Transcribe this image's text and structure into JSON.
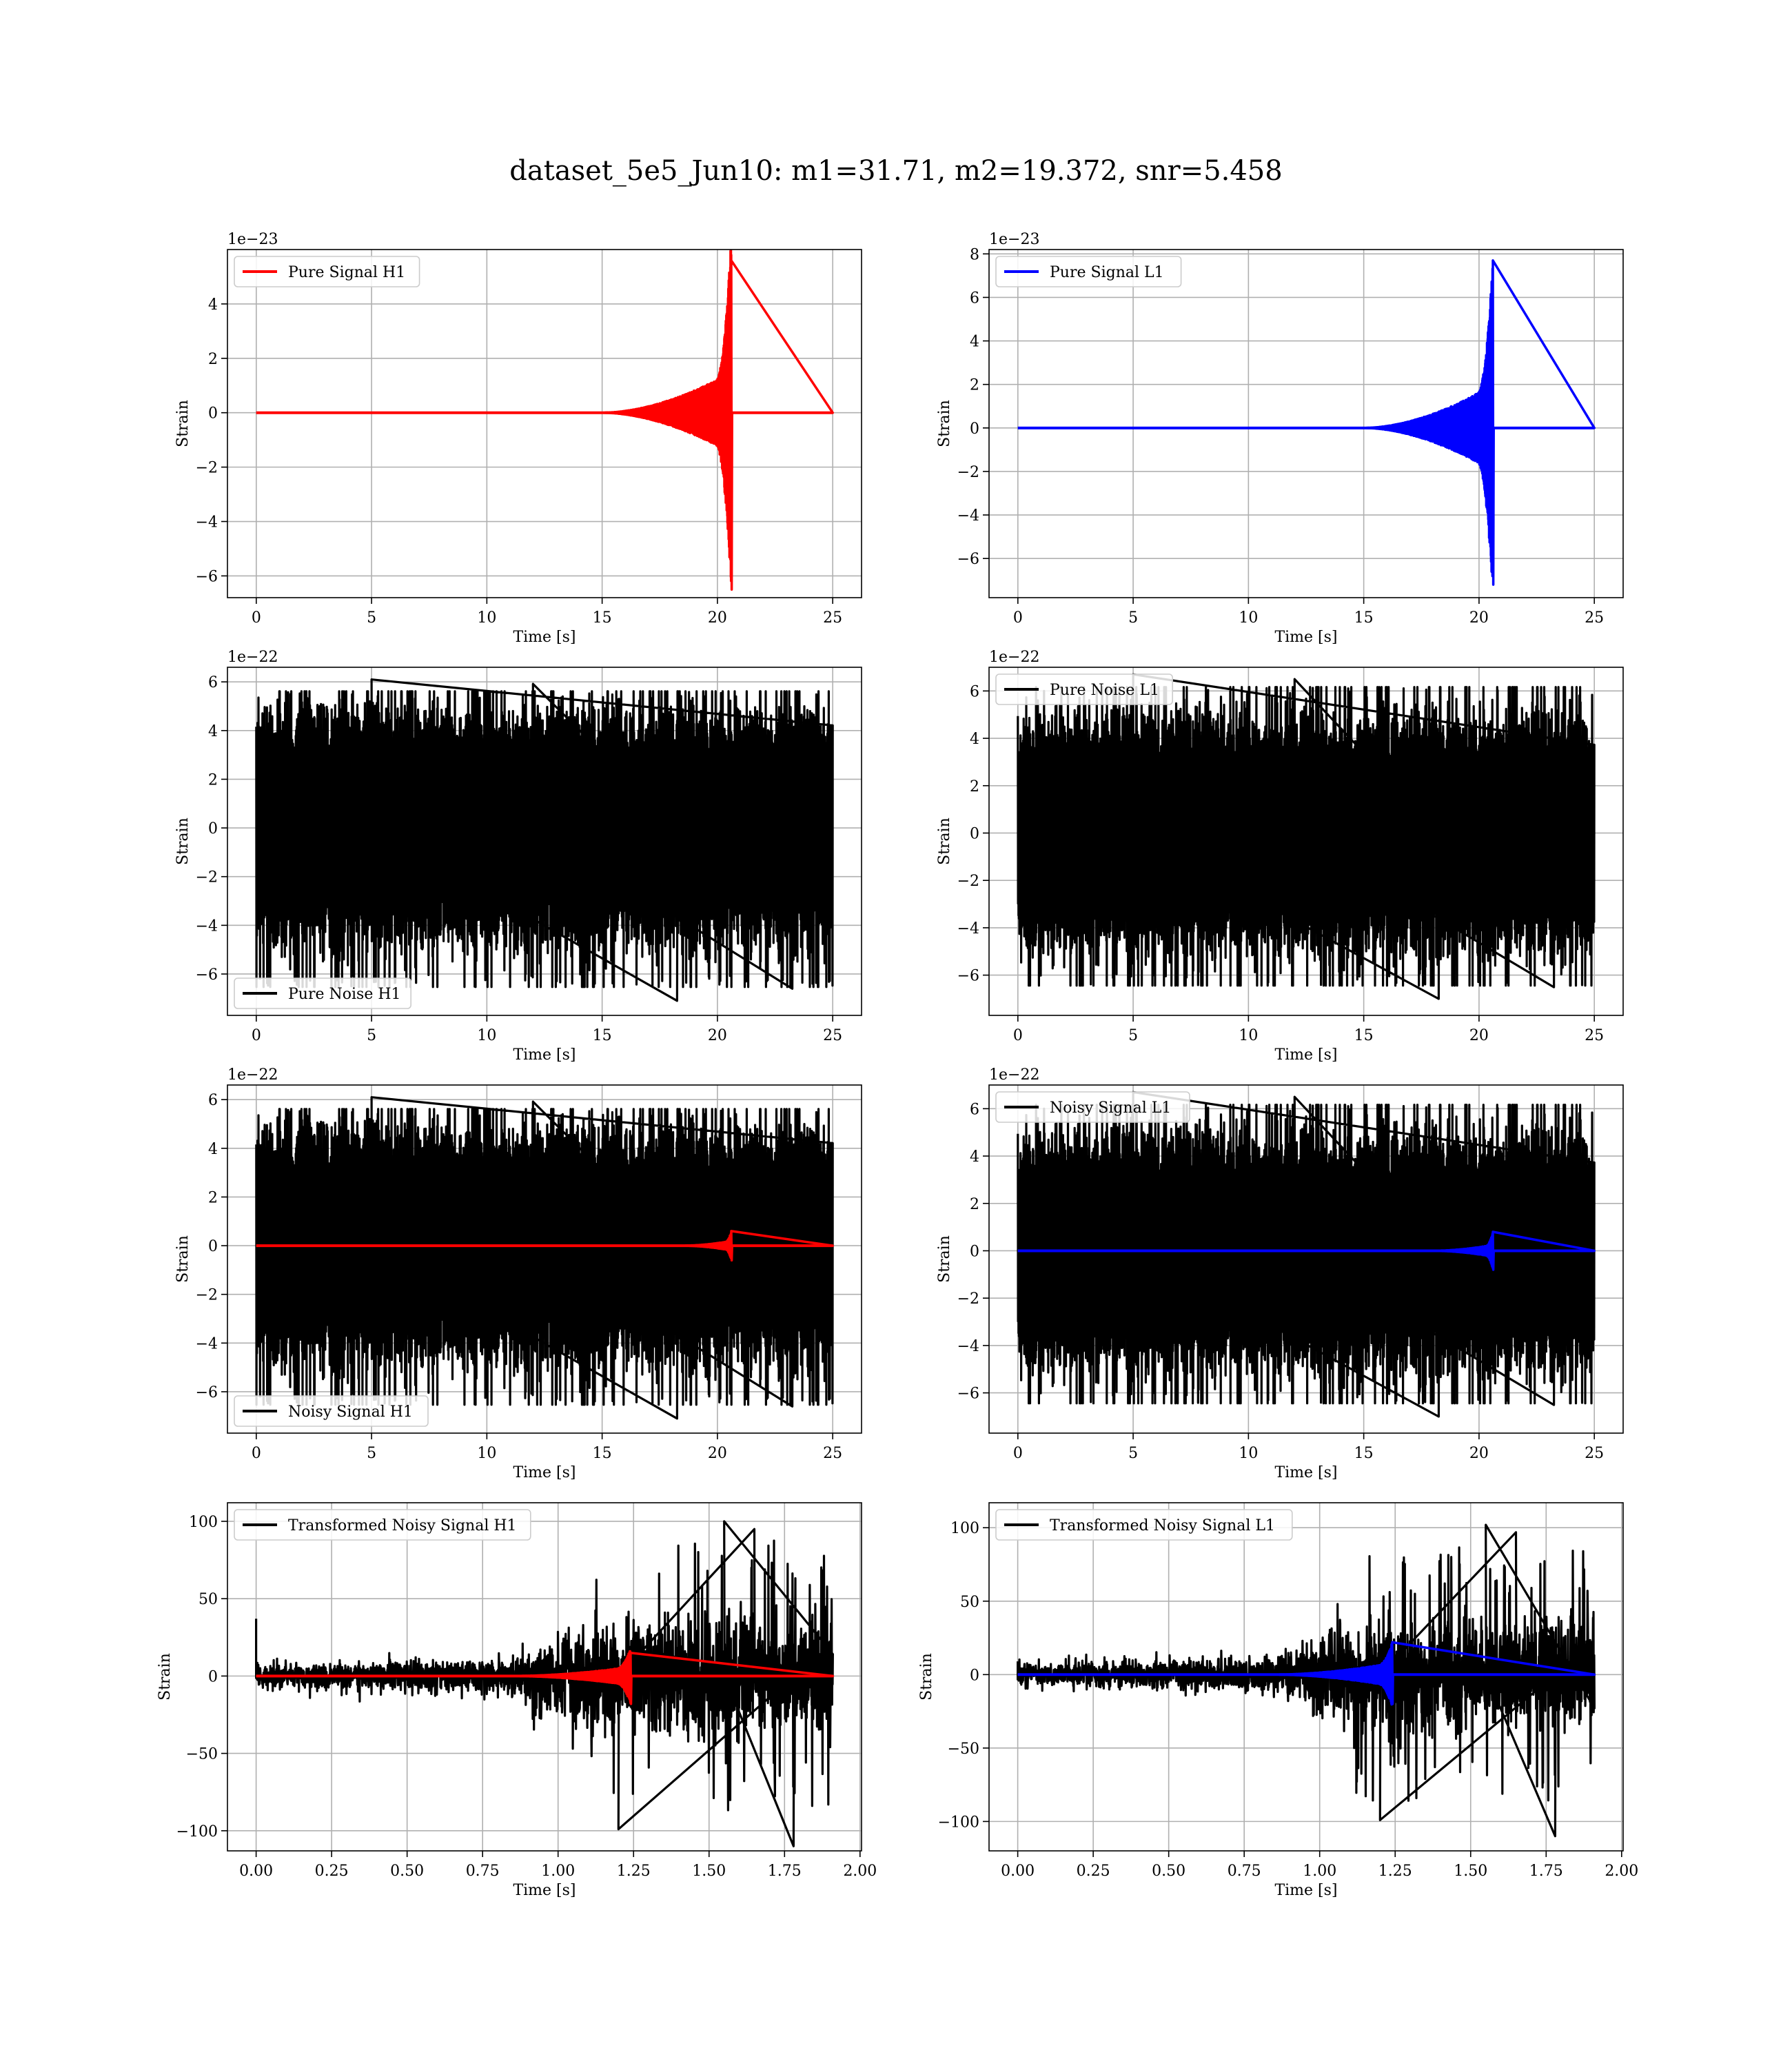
{
  "suptitle": "dataset_5e5_Jun10: m1=31.71, m2=19.372, snr=5.458",
  "chart_data": [
    {
      "type": "line",
      "panel": "top-left",
      "title": "",
      "xlabel": "Time [s]",
      "ylabel": "Strain",
      "offset_text": "1e−23",
      "xlim": [
        -1.25,
        26.25
      ],
      "ylim": [
        -6.8,
        6.0
      ],
      "xticks": [
        0,
        5,
        10,
        15,
        20,
        25
      ],
      "xtick_labels": [
        "0",
        "5",
        "10",
        "15",
        "20",
        "25"
      ],
      "yticks": [
        -6,
        -4,
        -2,
        0,
        2,
        4
      ],
      "ytick_labels": [
        "−6",
        "−4",
        "−2",
        "0",
        "2",
        "4"
      ],
      "grid": true,
      "legend_position": "upper-left",
      "series": [
        {
          "name": "Pure Signal H1",
          "color": "#ff0000",
          "kind": "chirp",
          "x_start": 0,
          "x_end": 25,
          "merger_time": 20.6,
          "onset_time": 15.0,
          "plateau_envelope": 1.5,
          "peak_positive": 5.6,
          "peak_negative": -6.5,
          "baseline": 0
        }
      ]
    },
    {
      "type": "line",
      "panel": "top-right",
      "title": "",
      "xlabel": "Time [s]",
      "ylabel": "Strain",
      "offset_text": "1e−23",
      "xlim": [
        -1.25,
        26.25
      ],
      "ylim": [
        -7.8,
        8.2
      ],
      "xticks": [
        0,
        5,
        10,
        15,
        20,
        25
      ],
      "xtick_labels": [
        "0",
        "5",
        "10",
        "15",
        "20",
        "25"
      ],
      "yticks": [
        -6,
        -4,
        -2,
        0,
        2,
        4,
        6,
        8
      ],
      "ytick_labels": [
        "−6",
        "−4",
        "−2",
        "0",
        "2",
        "4",
        "6",
        "8"
      ],
      "grid": true,
      "legend_position": "upper-left",
      "series": [
        {
          "name": "Pure Signal L1",
          "color": "#0000ff",
          "kind": "chirp",
          "x_start": 0,
          "x_end": 25,
          "merger_time": 20.6,
          "onset_time": 15.0,
          "plateau_envelope": 2.0,
          "peak_positive": 7.7,
          "peak_negative": -7.2,
          "baseline": 0
        }
      ]
    },
    {
      "type": "line",
      "panel": "row2-left",
      "title": "",
      "xlabel": "Time [s]",
      "ylabel": "Strain",
      "offset_text": "1e−22",
      "xlim": [
        -1.25,
        26.25
      ],
      "ylim": [
        -7.7,
        6.6
      ],
      "xticks": [
        0,
        5,
        10,
        15,
        20,
        25
      ],
      "xtick_labels": [
        "0",
        "5",
        "10",
        "15",
        "20",
        "25"
      ],
      "yticks": [
        -6,
        -4,
        -2,
        0,
        2,
        4,
        6
      ],
      "ytick_labels": [
        "−6",
        "−4",
        "−2",
        "0",
        "2",
        "4",
        "6"
      ],
      "grid": true,
      "legend_position": "lower-left",
      "series": [
        {
          "name": "Pure Noise H1",
          "color": "#000000",
          "kind": "noise",
          "x_start": 0,
          "x_end": 25,
          "core_amplitude": 3.3,
          "max_positive": 6.1,
          "max_negative": -7.1
        }
      ]
    },
    {
      "type": "line",
      "panel": "row2-right",
      "title": "",
      "xlabel": "Time [s]",
      "ylabel": "Strain",
      "offset_text": "1e−22",
      "xlim": [
        -1.25,
        26.25
      ],
      "ylim": [
        -7.7,
        7.0
      ],
      "xticks": [
        0,
        5,
        10,
        15,
        20,
        25
      ],
      "xtick_labels": [
        "0",
        "5",
        "10",
        "15",
        "20",
        "25"
      ],
      "yticks": [
        -6,
        -4,
        -2,
        0,
        2,
        4,
        6
      ],
      "ytick_labels": [
        "−6",
        "−4",
        "−2",
        "0",
        "2",
        "4",
        "6"
      ],
      "grid": true,
      "legend_position": "upper-left",
      "series": [
        {
          "name": "Pure Noise L1",
          "color": "#000000",
          "kind": "noise",
          "x_start": 0,
          "x_end": 25,
          "core_amplitude": 3.4,
          "max_positive": 6.7,
          "max_negative": -7.0
        }
      ]
    },
    {
      "type": "line",
      "panel": "row3-left",
      "title": "",
      "xlabel": "Time [s]",
      "ylabel": "Strain",
      "offset_text": "1e−22",
      "xlim": [
        -1.25,
        26.25
      ],
      "ylim": [
        -7.7,
        6.6
      ],
      "xticks": [
        0,
        5,
        10,
        15,
        20,
        25
      ],
      "xtick_labels": [
        "0",
        "5",
        "10",
        "15",
        "20",
        "25"
      ],
      "yticks": [
        -6,
        -4,
        -2,
        0,
        2,
        4,
        6
      ],
      "ytick_labels": [
        "−6",
        "−4",
        "−2",
        "0",
        "2",
        "4",
        "6"
      ],
      "grid": true,
      "legend_position": "lower-left",
      "series": [
        {
          "name": "Noisy Signal H1",
          "color": "#000000",
          "kind": "noise",
          "x_start": 0,
          "x_end": 25,
          "core_amplitude": 3.3,
          "max_positive": 6.1,
          "max_negative": -7.1
        },
        {
          "color": "#ff0000",
          "kind": "chirp",
          "x_start": 0,
          "x_end": 25,
          "merger_time": 20.6,
          "onset_time": 18.5,
          "plateau_envelope": 0.2,
          "peak_positive": 0.6,
          "peak_negative": -0.6,
          "baseline": 0
        }
      ]
    },
    {
      "type": "line",
      "panel": "row3-right",
      "title": "",
      "xlabel": "Time [s]",
      "ylabel": "Strain",
      "offset_text": "1e−22",
      "xlim": [
        -1.25,
        26.25
      ],
      "ylim": [
        -7.7,
        7.0
      ],
      "xticks": [
        0,
        5,
        10,
        15,
        20,
        25
      ],
      "xtick_labels": [
        "0",
        "5",
        "10",
        "15",
        "20",
        "25"
      ],
      "yticks": [
        -6,
        -4,
        -2,
        0,
        2,
        4,
        6
      ],
      "ytick_labels": [
        "−6",
        "−4",
        "−2",
        "0",
        "2",
        "4",
        "6"
      ],
      "grid": true,
      "legend_position": "upper-left",
      "series": [
        {
          "name": "Noisy Signal L1",
          "color": "#000000",
          "kind": "noise",
          "x_start": 0,
          "x_end": 25,
          "core_amplitude": 3.4,
          "max_positive": 6.7,
          "max_negative": -7.0
        },
        {
          "color": "#0000ff",
          "kind": "chirp",
          "x_start": 0,
          "x_end": 25,
          "merger_time": 20.6,
          "onset_time": 18.0,
          "plateau_envelope": 0.25,
          "peak_positive": 0.8,
          "peak_negative": -0.8,
          "baseline": 0
        }
      ]
    },
    {
      "type": "line",
      "panel": "bottom-left",
      "title": "",
      "xlabel": "Time [s]",
      "ylabel": "Strain",
      "offset_text": "",
      "xlim": [
        -0.095,
        2.005
      ],
      "ylim": [
        -113,
        112
      ],
      "xticks": [
        0.0,
        0.25,
        0.5,
        0.75,
        1.0,
        1.25,
        1.5,
        1.75,
        2.0
      ],
      "xtick_labels": [
        "0.00",
        "0.25",
        "0.50",
        "0.75",
        "1.00",
        "1.25",
        "1.50",
        "1.75",
        "2.00"
      ],
      "yticks": [
        -100,
        -50,
        0,
        50,
        100
      ],
      "ytick_labels": [
        "−100",
        "−50",
        "0",
        "50",
        "100"
      ],
      "grid": true,
      "legend_position": "upper-left",
      "series": [
        {
          "name": "Transformed Noisy Signal H1",
          "color": "#000000",
          "kind": "transformed",
          "x_start": 0,
          "x_end": 1.91,
          "early_envelope": 8,
          "ramp_start": 0.8,
          "ramp_end": 1.12,
          "late_envelope": 55,
          "max_positive": 100,
          "max_negative": -110,
          "initial_spike": 37
        },
        {
          "color": "#ff0000",
          "kind": "chirp",
          "x_start": 0,
          "x_end": 1.91,
          "merger_time": 1.24,
          "onset_time": 0.85,
          "plateau_envelope": 6,
          "peak_positive": 15,
          "peak_negative": -18,
          "baseline": 0
        }
      ]
    },
    {
      "type": "line",
      "panel": "bottom-right",
      "title": "",
      "xlabel": "Time [s]",
      "ylabel": "Strain",
      "offset_text": "",
      "xlim": [
        -0.095,
        2.005
      ],
      "ylim": [
        -120,
        117
      ],
      "xticks": [
        0.0,
        0.25,
        0.5,
        0.75,
        1.0,
        1.25,
        1.5,
        1.75,
        2.0
      ],
      "xtick_labels": [
        "0.00",
        "0.25",
        "0.50",
        "0.75",
        "1.00",
        "1.25",
        "1.50",
        "1.75",
        "2.00"
      ],
      "yticks": [
        -100,
        -50,
        0,
        50,
        100
      ],
      "ytick_labels": [
        "−100",
        "−50",
        "0",
        "50",
        "100"
      ],
      "grid": true,
      "legend_position": "upper-left",
      "series": [
        {
          "name": "Transformed Noisy Signal L1",
          "color": "#000000",
          "kind": "transformed",
          "x_start": 0,
          "x_end": 1.91,
          "early_envelope": 8,
          "ramp_start": 0.8,
          "ramp_end": 1.12,
          "late_envelope": 55,
          "max_positive": 102,
          "max_negative": -110,
          "initial_spike": 9
        },
        {
          "color": "#0000ff",
          "kind": "chirp",
          "x_start": 0,
          "x_end": 1.91,
          "merger_time": 1.24,
          "onset_time": 0.85,
          "plateau_envelope": 8,
          "peak_positive": 22,
          "peak_negative": -20,
          "baseline": 0
        }
      ]
    }
  ]
}
